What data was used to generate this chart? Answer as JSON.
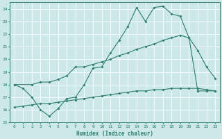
{
  "xlabel": "Humidex (Indice chaleur)",
  "color": "#2d7d6e",
  "bg_color": "#cce8e8",
  "grid_color": "#b0d0d0",
  "xlim": [
    -0.5,
    23.5
  ],
  "ylim": [
    15,
    24.5
  ],
  "yticks": [
    15,
    16,
    17,
    18,
    19,
    20,
    21,
    22,
    23,
    24
  ],
  "xticks": [
    0,
    1,
    2,
    3,
    4,
    5,
    6,
    7,
    8,
    9,
    10,
    11,
    12,
    13,
    14,
    15,
    16,
    17,
    18,
    19,
    20,
    21,
    22,
    23
  ],
  "line1_x": [
    0,
    1,
    2,
    3,
    4,
    5,
    6,
    7,
    8,
    9,
    10,
    11,
    12,
    13,
    14,
    15,
    16,
    17,
    18,
    19,
    20,
    21,
    22,
    23
  ],
  "line1_y": [
    18,
    17.7,
    17.0,
    16.0,
    15.5,
    16.1,
    16.9,
    17.0,
    18.0,
    19.3,
    19.4,
    20.5,
    21.5,
    22.6,
    24.1,
    23.0,
    24.1,
    24.2,
    23.6,
    23.4,
    21.7,
    20.7,
    19.4,
    18.5
  ],
  "line2_x": [
    0,
    2,
    3,
    4,
    5,
    6,
    7,
    8,
    9,
    10,
    11,
    12,
    13,
    14,
    15,
    16,
    17,
    18,
    19,
    20,
    21,
    22,
    23
  ],
  "line2_y": [
    18,
    18.0,
    18.2,
    18.2,
    18.4,
    18.7,
    19.4,
    19.4,
    19.6,
    19.8,
    20.0,
    20.3,
    20.5,
    20.8,
    21.0,
    21.2,
    21.5,
    21.7,
    21.9,
    21.7,
    17.5,
    17.5,
    17.5
  ],
  "line3_x": [
    0,
    1,
    2,
    3,
    4,
    5,
    6,
    7,
    8,
    9,
    10,
    11,
    12,
    13,
    14,
    15,
    16,
    17,
    18,
    19,
    20,
    21,
    22,
    23
  ],
  "line3_y": [
    16.2,
    16.3,
    16.4,
    16.5,
    16.5,
    16.6,
    16.7,
    16.8,
    16.9,
    17.0,
    17.1,
    17.2,
    17.3,
    17.4,
    17.5,
    17.5,
    17.6,
    17.6,
    17.7,
    17.7,
    17.7,
    17.7,
    17.6,
    17.5
  ]
}
